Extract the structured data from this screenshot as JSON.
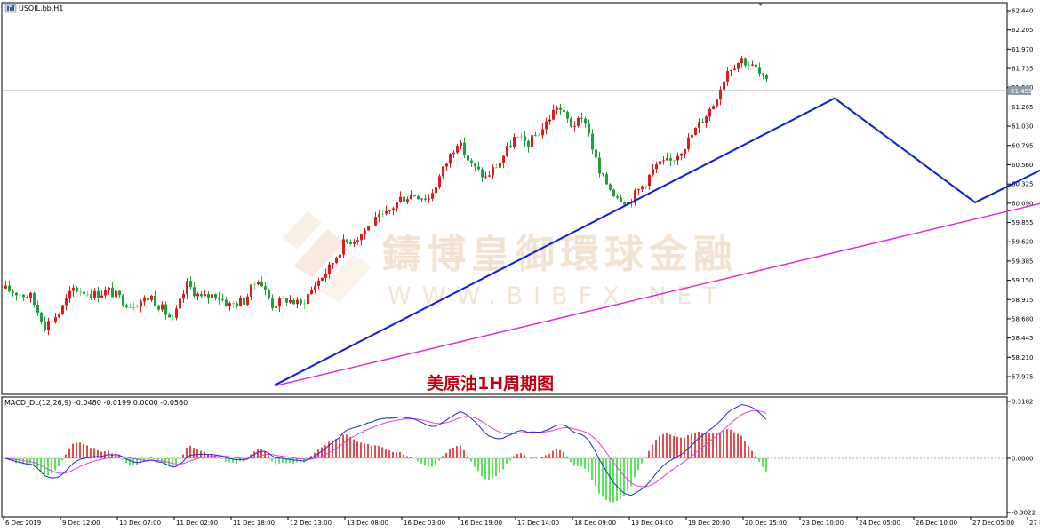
{
  "window": {
    "symbol_title": "USOIL.bb,H1",
    "indicator_title": "MACD_DL(12,26,9) -0.0480 -0.0199 0.0000 -0.0560"
  },
  "watermark": {
    "chinese": "鑄博皇御環球金融",
    "english": "WWW.BIBFX.NET"
  },
  "caption": "美原油1H周期图",
  "current_price": "61.455",
  "colors": {
    "bull": "#e11b1b",
    "bear": "#1aa33a",
    "doji": "#7ad67a",
    "zigzag_blue": "#0b1fd6",
    "zigzag_red": "#e00000",
    "trendline": "#e020e0",
    "macd_up": "#e02020",
    "macd_down": "#33dd33",
    "macd_line": "#1c2bd8",
    "signal_line": "#e040e0"
  },
  "chart_data": {
    "type": "candlestick",
    "y_axis": {
      "range": [
        57.84,
        62.5
      ],
      "ticks": [
        "62.440",
        "62.205",
        "61.970",
        "61.735",
        "61.500",
        "61.265",
        "61.030",
        "60.795",
        "60.560",
        "60.325",
        "60.090",
        "59.855",
        "59.620",
        "59.385",
        "59.150",
        "58.915",
        "58.680",
        "58.445",
        "58.210",
        "57.975"
      ]
    },
    "x_axis": {
      "labels": [
        "6 Dec 2019",
        "9 Dec 12:00",
        "10 Dec 07:00",
        "11 Dec 02:00",
        "11 Dec 18:00",
        "12 Dec 13:00",
        "13 Dec 08:00",
        "16 Dec 03:00",
        "16 Dec 19:00",
        "17 Dec 14:00",
        "18 Dec 09:00",
        "19 Dec 04:00",
        "19 Dec 20:00",
        "20 Dec 15:00",
        "23 Dec 10:00",
        "24 Dec 05:00",
        "26 Dec 10:00",
        "27 Dec 05:00",
        "27 Dec 21:00",
        "30 Dec 16:00"
      ],
      "bars_per_label": 16,
      "total_bars": 215
    },
    "anchors": [
      {
        "i": 0,
        "p": 59.05
      },
      {
        "i": 8,
        "p": 58.95
      },
      {
        "i": 12,
        "p": 58.6
      },
      {
        "i": 16,
        "p": 58.75
      },
      {
        "i": 20,
        "p": 59.05
      },
      {
        "i": 26,
        "p": 58.98
      },
      {
        "i": 30,
        "p": 59.02
      },
      {
        "i": 36,
        "p": 58.85
      },
      {
        "i": 42,
        "p": 58.95
      },
      {
        "i": 48,
        "p": 58.65
      },
      {
        "i": 52,
        "p": 59.1
      },
      {
        "i": 56,
        "p": 58.93
      },
      {
        "i": 60,
        "p": 58.98
      },
      {
        "i": 64,
        "p": 58.85
      },
      {
        "i": 68,
        "p": 58.9
      },
      {
        "i": 72,
        "p": 59.18
      },
      {
        "i": 76,
        "p": 58.85
      },
      {
        "i": 80,
        "p": 58.92
      },
      {
        "i": 84,
        "p": 58.85
      },
      {
        "i": 88,
        "p": 59.1
      },
      {
        "i": 92,
        "p": 59.3
      },
      {
        "i": 96,
        "p": 59.6
      },
      {
        "i": 100,
        "p": 59.68
      },
      {
        "i": 104,
        "p": 59.85
      },
      {
        "i": 108,
        "p": 59.95
      },
      {
        "i": 112,
        "p": 60.15
      },
      {
        "i": 116,
        "p": 60.2
      },
      {
        "i": 120,
        "p": 60.15
      },
      {
        "i": 124,
        "p": 60.5
      },
      {
        "i": 128,
        "p": 60.85
      },
      {
        "i": 132,
        "p": 60.55
      },
      {
        "i": 136,
        "p": 60.4
      },
      {
        "i": 140,
        "p": 60.6
      },
      {
        "i": 144,
        "p": 60.88
      },
      {
        "i": 148,
        "p": 60.82
      },
      {
        "i": 152,
        "p": 61.0
      },
      {
        "i": 156,
        "p": 61.28
      },
      {
        "i": 160,
        "p": 61.05
      },
      {
        "i": 164,
        "p": 61.1
      },
      {
        "i": 168,
        "p": 60.45
      },
      {
        "i": 172,
        "p": 60.22
      },
      {
        "i": 176,
        "p": 60.1
      },
      {
        "i": 180,
        "p": 60.3
      },
      {
        "i": 184,
        "p": 60.55
      },
      {
        "i": 188,
        "p": 60.6
      },
      {
        "i": 192,
        "p": 60.8
      },
      {
        "i": 196,
        "p": 61.05
      },
      {
        "i": 200,
        "p": 61.3
      },
      {
        "i": 204,
        "p": 61.72
      },
      {
        "i": 208,
        "p": 61.85
      },
      {
        "i": 212,
        "p": 61.72
      },
      {
        "i": 215,
        "p": 61.55
      }
    ],
    "macd": {
      "range": [
        -0.3022,
        0.3182
      ],
      "ticks": [
        "0.3182",
        "0.0000",
        "-0.3022"
      ]
    },
    "drawings": {
      "blue_zigzag": [
        {
          "bar": 76,
          "price": 57.87
        },
        {
          "bar": 233.5,
          "price": 61.37
        },
        {
          "bar": 273,
          "price": 60.1
        },
        {
          "bar": 372,
          "price": 62.22
        },
        {
          "bar": 401,
          "price": 61.28
        },
        {
          "bar": 444,
          "price": 62.5
        }
      ],
      "red_projection": [
        {
          "bar": 372,
          "price": 62.13
        },
        {
          "bar": 393,
          "price": 61.25
        },
        {
          "bar": 418,
          "price": 61.97
        },
        {
          "bar": 427,
          "price": 61.8
        },
        {
          "bar": 446,
          "price": 62.38
        }
      ],
      "magenta_trendline": [
        {
          "bar": 76,
          "price": 57.86
        },
        {
          "bar": 516,
          "price": 62.41
        }
      ]
    }
  }
}
